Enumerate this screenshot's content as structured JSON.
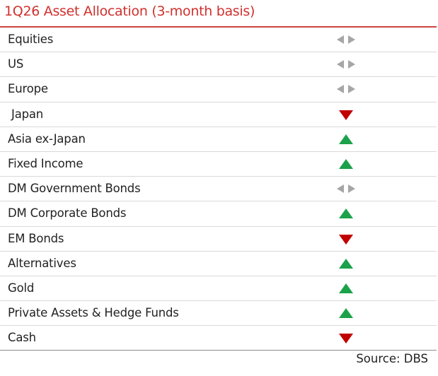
{
  "header": {
    "title": "1Q26 Asset Allocation (3-month basis)"
  },
  "table": {
    "rows": [
      [
        "Equities"
      ],
      [
        "US"
      ],
      [
        "Europe"
      ],
      [
        " Japan"
      ],
      [
        "Asia ex-Japan"
      ],
      [
        "Fixed Income"
      ],
      [
        "DM Government Bonds"
      ],
      [
        "DM Corporate Bonds"
      ],
      [
        "EM Bonds"
      ],
      [
        "Alternatives"
      ],
      [
        "Gold"
      ],
      [
        "Private Assets & Hedge Funds"
      ],
      [
        "Cash"
      ]
    ]
  },
  "footer": {
    "source": "Source: DBS"
  }
}
